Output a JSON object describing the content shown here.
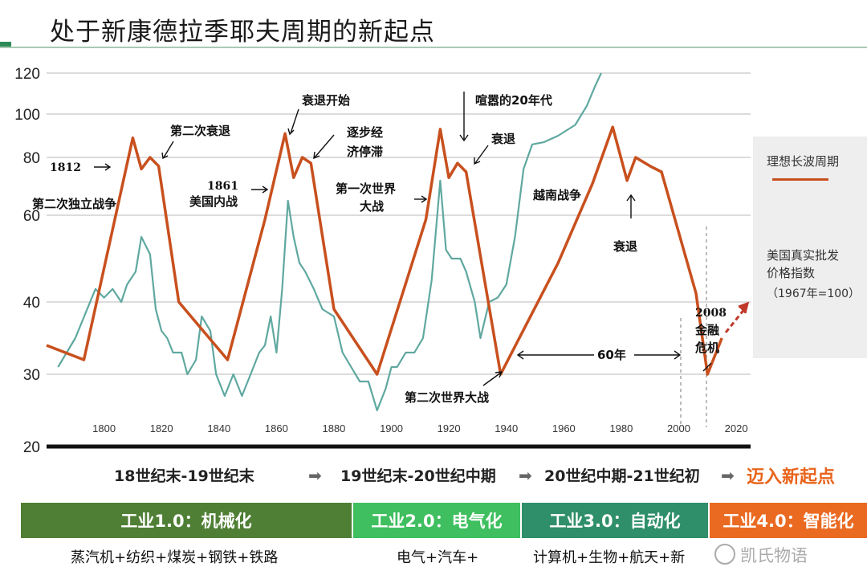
{
  "title": "处于新康德拉季耶夫周期的新起点",
  "legend": {
    "ideal_wave": "理想长波周期",
    "index_line1": "美国真实批发",
    "index_line2": "价格指数",
    "index_line3": "（1967年=100）",
    "ideal_color": "#c8501e",
    "index_color": "#5fa8a0"
  },
  "annotations": {
    "a1812_year": "1812",
    "a1812_text": "第二次独立战争",
    "second_recession": "第二次衰退",
    "a1861_year": "1861",
    "a1861_text": "美国内战",
    "recession_start": "衰退开始",
    "stagnation_1": "逐步经",
    "stagnation_2": "济停滞",
    "ww1_1": "第一次世界",
    "ww1_2": "大战",
    "roaring20s": "喧嚣的20年代",
    "recession_1920s": "衰退",
    "ww2": "第二次世界大战",
    "vietnam": "越南战争",
    "recession_1980s": "衰退",
    "sixty_years": "60年",
    "crisis_year": "2008",
    "crisis_1": "金融",
    "crisis_2": "危机"
  },
  "eras": {
    "era1": "18世纪末-19世纪末",
    "era2": "19世纪末-20世纪中期",
    "era3": "20世纪中期-21世纪初",
    "era4": "迈入新起点"
  },
  "bands": [
    {
      "label": "工业1.0：机械化",
      "color": "#4f7f34"
    },
    {
      "label": "工业2.0：电气化",
      "color": "#3fbf5f"
    },
    {
      "label": "工业3.0：自动化",
      "color": "#2f8f6a"
    },
    {
      "label": "工业4.0：智能化",
      "color": "#ea6a22"
    }
  ],
  "tech": {
    "t1": "蒸汽机+纺织+煤炭+钢铁+铁路",
    "t2": "电气+汽车+",
    "t3": "计算机+生物+航天+新"
  },
  "watermark": "凯氏物语",
  "chart_data": {
    "type": "line",
    "y_ticks": [
      20,
      30,
      40,
      60,
      80,
      100,
      120
    ],
    "x_ticks": [
      1800,
      1820,
      1840,
      1860,
      1880,
      1900,
      1920,
      1940,
      1960,
      1980,
      2000,
      2020
    ],
    "xlim": [
      1780,
      2025
    ],
    "ylim": [
      20,
      120
    ],
    "series": [
      {
        "key": "ideal",
        "name": "理想长波周期",
        "points": [
          [
            1780,
            34
          ],
          [
            1793,
            32
          ],
          [
            1810,
            89
          ],
          [
            1813,
            76
          ],
          [
            1816,
            80
          ],
          [
            1819,
            77
          ],
          [
            1826,
            40
          ],
          [
            1843,
            32
          ],
          [
            1856,
            59
          ],
          [
            1863,
            91
          ],
          [
            1866,
            73
          ],
          [
            1869,
            80
          ],
          [
            1872,
            78
          ],
          [
            1880,
            39
          ],
          [
            1895,
            30
          ],
          [
            1912,
            59
          ],
          [
            1917,
            93
          ],
          [
            1920,
            73
          ],
          [
            1923,
            78
          ],
          [
            1926,
            75
          ],
          [
            1938,
            30
          ],
          [
            1958,
            49
          ],
          [
            1970,
            71
          ],
          [
            1977,
            94
          ],
          [
            1982,
            72
          ],
          [
            1985,
            80
          ],
          [
            1990,
            77
          ],
          [
            1994,
            75
          ],
          [
            2006,
            42
          ],
          [
            2010,
            30
          ],
          [
            2015,
            35
          ]
        ]
      },
      {
        "key": "index",
        "name": "美国真实批发价格指数",
        "points": [
          [
            1784,
            31
          ],
          [
            1790,
            35
          ],
          [
            1797,
            43
          ],
          [
            1800,
            41
          ],
          [
            1803,
            43
          ],
          [
            1806,
            40
          ],
          [
            1808,
            44
          ],
          [
            1811,
            47
          ],
          [
            1813,
            55
          ],
          [
            1816,
            51
          ],
          [
            1818,
            39
          ],
          [
            1820,
            36
          ],
          [
            1822,
            35
          ],
          [
            1824,
            33
          ],
          [
            1827,
            33
          ],
          [
            1829,
            30
          ],
          [
            1832,
            32
          ],
          [
            1834,
            38
          ],
          [
            1837,
            36
          ],
          [
            1839,
            30
          ],
          [
            1842,
            27
          ],
          [
            1845,
            30
          ],
          [
            1848,
            27
          ],
          [
            1851,
            30
          ],
          [
            1854,
            33
          ],
          [
            1856,
            34
          ],
          [
            1858,
            38
          ],
          [
            1860,
            33
          ],
          [
            1862,
            43
          ],
          [
            1864,
            65
          ],
          [
            1866,
            55
          ],
          [
            1868,
            49
          ],
          [
            1870,
            47
          ],
          [
            1873,
            43
          ],
          [
            1876,
            39
          ],
          [
            1880,
            38
          ],
          [
            1883,
            33
          ],
          [
            1886,
            31
          ],
          [
            1889,
            29
          ],
          [
            1892,
            29
          ],
          [
            1895,
            25
          ],
          [
            1898,
            28
          ],
          [
            1900,
            31
          ],
          [
            1902,
            31
          ],
          [
            1905,
            33
          ],
          [
            1908,
            33
          ],
          [
            1911,
            35
          ],
          [
            1914,
            45
          ],
          [
            1917,
            72
          ],
          [
            1919,
            52
          ],
          [
            1921,
            50
          ],
          [
            1924,
            50
          ],
          [
            1926,
            47
          ],
          [
            1929,
            40
          ],
          [
            1931,
            35
          ],
          [
            1934,
            40
          ],
          [
            1937,
            41
          ],
          [
            1940,
            44
          ],
          [
            1943,
            55
          ],
          [
            1946,
            76
          ],
          [
            1949,
            86
          ],
          [
            1953,
            87
          ],
          [
            1958,
            90
          ],
          [
            1964,
            95
          ],
          [
            1968,
            104
          ],
          [
            1971,
            114
          ],
          [
            1973,
            120
          ]
        ]
      }
    ]
  }
}
